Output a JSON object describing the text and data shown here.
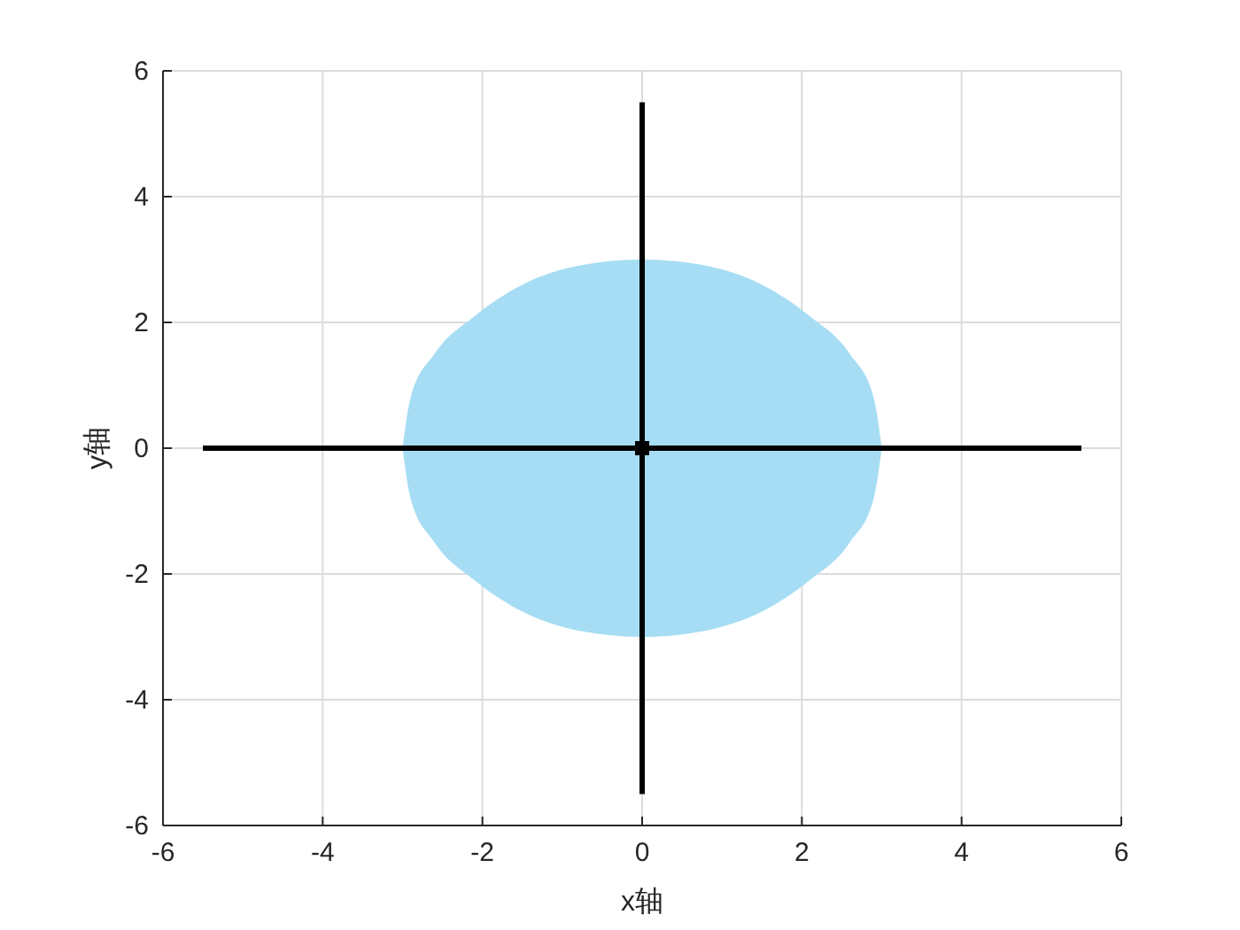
{
  "chart_data": {
    "type": "line",
    "xlabel": "x轴",
    "ylabel": "y轴",
    "xlim": [
      -6,
      6
    ],
    "ylim": [
      -6,
      6
    ],
    "xticks": [
      -6,
      -4,
      -2,
      0,
      2,
      4,
      6
    ],
    "yticks": [
      -6,
      -4,
      -2,
      0,
      2,
      4,
      6
    ],
    "grid": true,
    "series": [
      {
        "type": "area",
        "color": "#a6ddf4",
        "x": [
          -3,
          -2.9,
          -2.6,
          -2.1,
          -1.5,
          -0.8,
          0,
          0.8,
          1.5,
          2.1,
          2.6,
          2.9,
          3
        ],
        "values": [
          0,
          0.8,
          1.5,
          2.1,
          2.6,
          2.9,
          3,
          2.9,
          2.6,
          2.1,
          1.5,
          0.8,
          0
        ]
      },
      {
        "type": "area",
        "color": "#a6ddf4",
        "x": [
          -3,
          -2.9,
          -2.6,
          -2.1,
          -1.5,
          -0.8,
          0,
          0.8,
          1.5,
          2.1,
          2.6,
          2.9,
          3
        ],
        "values": [
          0,
          -0.8,
          -1.5,
          -2.1,
          -2.6,
          -2.9,
          -3,
          -2.9,
          -2.6,
          -2.1,
          -1.5,
          -0.8,
          0
        ]
      },
      {
        "color": "#000000",
        "x": [
          -5.5,
          5.5
        ],
        "values": [
          0,
          0
        ]
      },
      {
        "color": "#000000",
        "x": [
          0,
          0
        ],
        "values": [
          -5.5,
          5.5
        ]
      },
      {
        "type": "scatter",
        "color": "#000000",
        "marker": "square",
        "x": [
          0
        ],
        "values": [
          0
        ]
      }
    ]
  }
}
